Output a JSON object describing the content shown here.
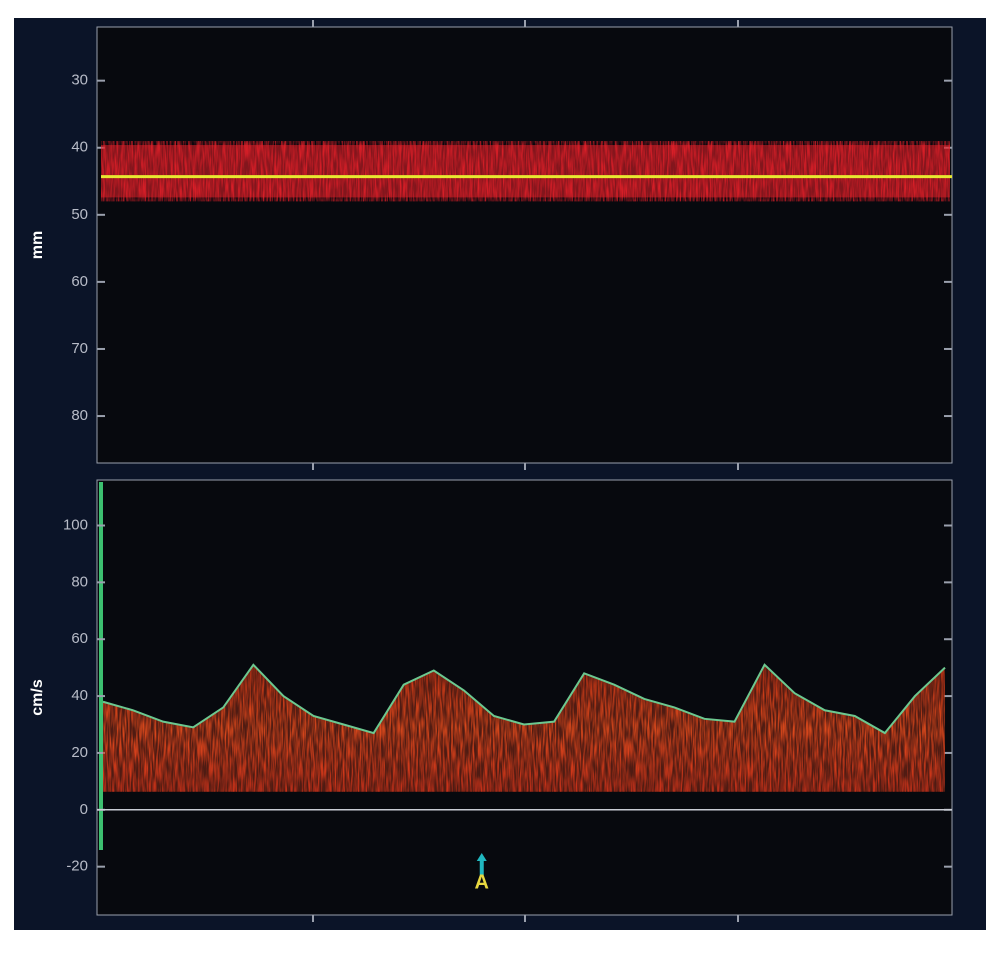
{
  "chart_data": [
    {
      "type": "mmode",
      "ylabel": "mm",
      "ylim": [
        22,
        87
      ],
      "inverted": true,
      "yticks": [
        30,
        40,
        50,
        60,
        70,
        80
      ],
      "band": [
        39,
        48
      ],
      "center": 44.3,
      "color": "#e8202a",
      "line_color": "#e8e830"
    },
    {
      "type": "doppler",
      "ylabel": "cm/s",
      "ylim": [
        -37,
        116
      ],
      "yticks": [
        -20,
        0,
        20,
        40,
        60,
        80,
        100
      ],
      "values": [
        38,
        35,
        31,
        29,
        36,
        51,
        40,
        33,
        30,
        27,
        44,
        49,
        42,
        33,
        30,
        31,
        48,
        44,
        39,
        36,
        32,
        31,
        51,
        41,
        35,
        33,
        27,
        40,
        50
      ],
      "color": "#6cc890",
      "fill_color": "#d8401c",
      "annotation": "A"
    }
  ]
}
